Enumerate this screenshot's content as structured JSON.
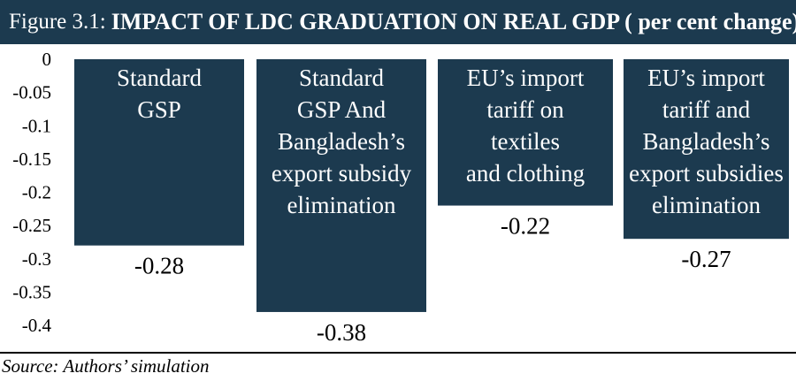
{
  "header": {
    "figure_label": "Figure 3.1:",
    "title": "IMPACT OF LDC GRADUATION ON REAL GDP ( per cent change)"
  },
  "source": "Source: Authors’ simulation",
  "colors": {
    "bar": "#1c3a4f",
    "bar_text": "#ffffff",
    "title_bar": "#1c3a4f"
  },
  "chart_data": {
    "type": "bar",
    "title": "IMPACT OF LDC GRADUATION ON REAL GDP ( per cent change)",
    "categories": [
      [
        "Standard",
        "GSP"
      ],
      [
        "Standard",
        "GSP And",
        "Bangladesh’s",
        "export subsidy",
        "elimination"
      ],
      [
        "EU’s import",
        "tariff on",
        "textiles",
        "and clothing"
      ],
      [
        "EU’s import",
        "tariff and",
        "Bangladesh’s",
        "export subsidies",
        "elimination"
      ]
    ],
    "values": [
      -0.28,
      -0.38,
      -0.22,
      -0.27
    ],
    "value_labels": [
      "-0.28",
      "-0.38",
      "-0.22",
      "-0.27"
    ],
    "y_ticks": [
      "0",
      "-0.05",
      "-0.1",
      "-0.15",
      "-0.2",
      "-0.25",
      "-0.3",
      "-0.35",
      "-0.4"
    ],
    "ylim": [
      -0.4,
      0
    ],
    "grid": false,
    "legend": "none"
  }
}
